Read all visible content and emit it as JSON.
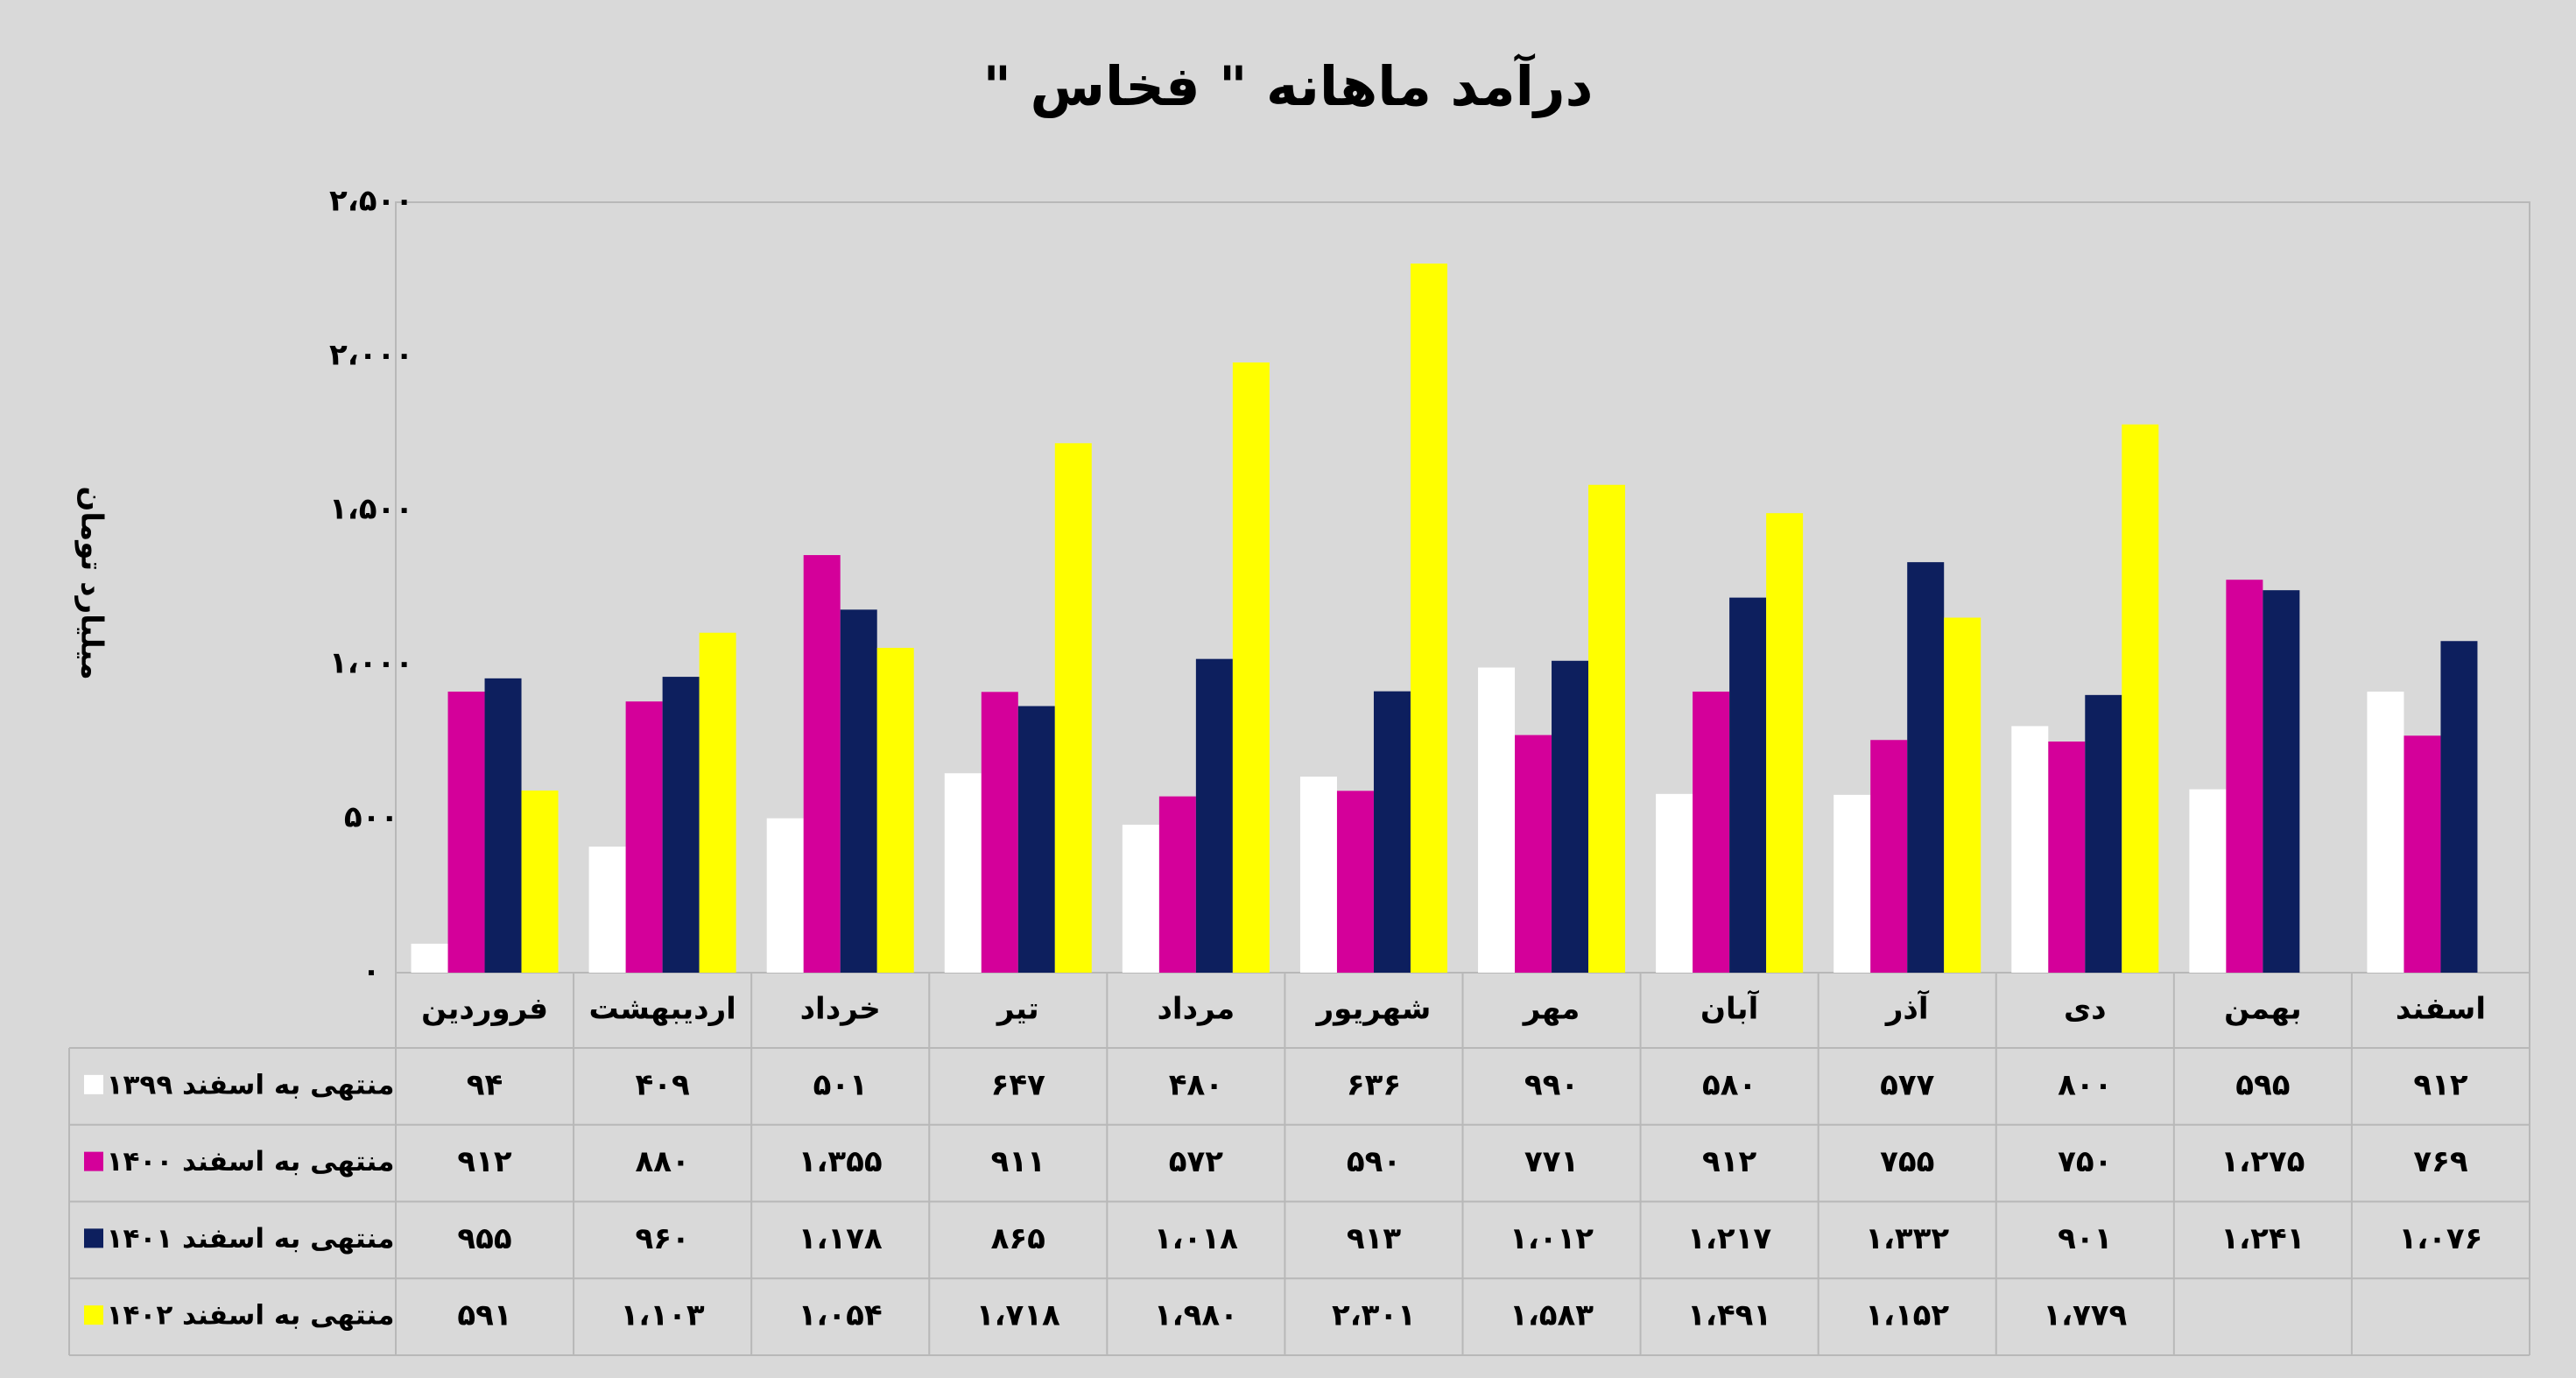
{
  "chart_data": {
    "type": "bar",
    "title": "درآمد ماهانه \" فخاس \"",
    "ylabel": "میلیارد تومان",
    "categories": [
      "فروردین",
      "اردیبهشت",
      "خرداد",
      "تیر",
      "مرداد",
      "شهریور",
      "مهر",
      "آبان",
      "آذر",
      "دی",
      "بهمن",
      "اسفند"
    ],
    "series": [
      {
        "name": "منتهی به اسفند ۱۳۹۹",
        "color": "#ffffff",
        "values": [
          94,
          409,
          501,
          647,
          480,
          636,
          990,
          580,
          577,
          800,
          595,
          912
        ],
        "value_labels": [
          "۹۴",
          "۴۰۹",
          "۵۰۱",
          "۶۴۷",
          "۴۸۰",
          "۶۳۶",
          "۹۹۰",
          "۵۸۰",
          "۵۷۷",
          "۸۰۰",
          "۵۹۵",
          "۹۱۲"
        ]
      },
      {
        "name": "منتهی به اسفند ۱۴۰۰",
        "color": "#d4009a",
        "values": [
          912,
          880,
          1355,
          911,
          572,
          590,
          771,
          912,
          755,
          750,
          1275,
          769
        ],
        "value_labels": [
          "۹۱۲",
          "۸۸۰",
          "۱،۳۵۵",
          "۹۱۱",
          "۵۷۲",
          "۵۹۰",
          "۷۷۱",
          "۹۱۲",
          "۷۵۵",
          "۷۵۰",
          "۱،۲۷۵",
          "۷۶۹"
        ]
      },
      {
        "name": "منتهی به اسفند ۱۴۰۱",
        "color": "#0d1f5e",
        "values": [
          955,
          960,
          1178,
          865,
          1018,
          913,
          1012,
          1217,
          1332,
          901,
          1241,
          1076
        ],
        "value_labels": [
          "۹۵۵",
          "۹۶۰",
          "۱،۱۷۸",
          "۸۶۵",
          "۱،۰۱۸",
          "۹۱۳",
          "۱،۰۱۲",
          "۱،۲۱۷",
          "۱،۳۳۲",
          "۹۰۱",
          "۱،۲۴۱",
          "۱،۰۷۶"
        ]
      },
      {
        "name": "منتهی به اسفند ۱۴۰۲",
        "color": "#ffff00",
        "values": [
          591,
          1103,
          1054,
          1718,
          1980,
          2301,
          1583,
          1491,
          1152,
          1779,
          null,
          null
        ],
        "value_labels": [
          "۵۹۱",
          "۱،۱۰۳",
          "۱،۰۵۴",
          "۱،۷۱۸",
          "۱،۹۸۰",
          "۲،۳۰۱",
          "۱،۵۸۳",
          "۱،۴۹۱",
          "۱،۱۵۲",
          "۱،۷۷۹",
          null,
          null
        ]
      }
    ],
    "ylim": [
      0,
      2500
    ],
    "yticks": [
      {
        "value": 0,
        "label": "۰"
      },
      {
        "value": 500,
        "label": "۵۰۰"
      },
      {
        "value": 1000,
        "label": "۱،۰۰۰"
      },
      {
        "value": 1500,
        "label": "۱،۵۰۰"
      },
      {
        "value": 2000,
        "label": "۲،۰۰۰"
      },
      {
        "value": 2500,
        "label": "۲،۵۰۰"
      }
    ],
    "grid": false
  }
}
